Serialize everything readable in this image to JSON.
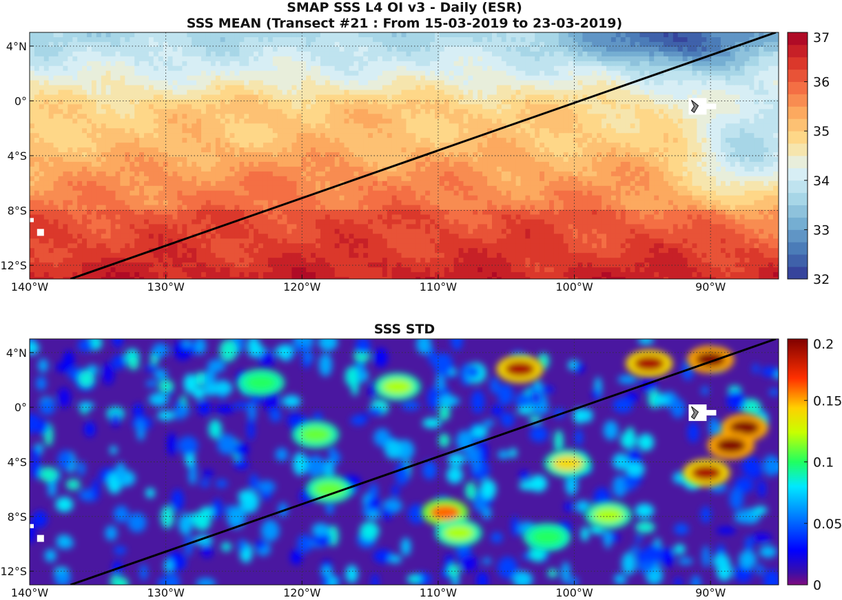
{
  "figure": {
    "title_line1": "SMAP SSS L4 OI v3 - Daily (ESR)",
    "title_line2": "SSS MEAN (Transect #21 : From 15-03-2019 to 23-03-2019)"
  },
  "chart_data": [
    {
      "type": "heatmap",
      "title": "SSS MEAN",
      "x_ticks": [
        {
          "value": -140,
          "label": "140°W"
        },
        {
          "value": -130,
          "label": "130°W"
        },
        {
          "value": -120,
          "label": "120°W"
        },
        {
          "value": -110,
          "label": "110°W"
        },
        {
          "value": -100,
          "label": "100°W"
        },
        {
          "value": -90,
          "label": "90°W"
        }
      ],
      "y_ticks": [
        {
          "value": 4,
          "label": "4°N"
        },
        {
          "value": 0,
          "label": "0°"
        },
        {
          "value": -4,
          "label": "4°S"
        },
        {
          "value": -8,
          "label": "8°S"
        },
        {
          "value": -12,
          "label": "12°S"
        }
      ],
      "xlim": [
        -140,
        -85
      ],
      "ylim": [
        -13,
        5
      ],
      "grid": true,
      "colorbar": {
        "min": 32,
        "max": 37,
        "ticks": [
          "32",
          "33",
          "34",
          "35",
          "36",
          "37"
        ],
        "colormap": "red-yellow-blue (diverging), reversed",
        "levels": 20
      },
      "transect": {
        "start": {
          "lon": -137,
          "lat": -13
        },
        "end": {
          "lon": -85.2,
          "lat": 5
        },
        "color": "#000000"
      },
      "fields": {
        "description_regions": [
          {
            "region": "north-east (95W-88W, 2N-5N)",
            "value": 33.0
          },
          {
            "region": "northern band (135W-95W, 1N-5N)",
            "value": 34.2
          },
          {
            "region": "equatorial band (140W-100W, 0-2S)",
            "value": 35.0
          },
          {
            "region": "south-west (140W-110W, 4S-8S)",
            "value": 35.5
          },
          {
            "region": "south (140W-100W, 8S-13S)",
            "value": 36.0
          },
          {
            "region": "east (95W-85W, 2S-8S)",
            "value": 34.2
          }
        ]
      }
    },
    {
      "type": "heatmap",
      "title": "SSS STD",
      "x_ticks": [
        {
          "value": -140,
          "label": "140°W"
        },
        {
          "value": -130,
          "label": "130°W"
        },
        {
          "value": -120,
          "label": "120°W"
        },
        {
          "value": -110,
          "label": "110°W"
        },
        {
          "value": -100,
          "label": "100°W"
        },
        {
          "value": -90,
          "label": "90°W"
        }
      ],
      "y_ticks": [
        {
          "value": 4,
          "label": "4°N"
        },
        {
          "value": 0,
          "label": "0°"
        },
        {
          "value": -4,
          "label": "4°S"
        },
        {
          "value": -8,
          "label": "8°S"
        },
        {
          "value": -12,
          "label": "12°S"
        }
      ],
      "xlim": [
        -140,
        -85
      ],
      "ylim": [
        -13,
        5
      ],
      "grid": true,
      "colorbar": {
        "min": 0,
        "max": 0.2,
        "ticks": [
          "0",
          "0.05",
          "0.1",
          "0.15",
          "0.2"
        ],
        "colormap": "jet"
      },
      "transect": {
        "start": {
          "lon": -137,
          "lat": -13
        },
        "end": {
          "lon": -85.2,
          "lat": 5
        },
        "color": "#000000"
      },
      "hotspots": [
        {
          "lon": -104,
          "lat": 2.8,
          "value": 0.19
        },
        {
          "lon": -94.5,
          "lat": 3.2,
          "value": 0.19
        },
        {
          "lon": -90,
          "lat": 3.5,
          "value": 0.2
        },
        {
          "lon": -87.5,
          "lat": -1.5,
          "value": 0.2
        },
        {
          "lon": -88.5,
          "lat": -2.8,
          "value": 0.2
        },
        {
          "lon": -90.3,
          "lat": -4.8,
          "value": 0.19
        },
        {
          "lon": -109.5,
          "lat": -7.7,
          "value": 0.16
        },
        {
          "lon": -100.5,
          "lat": -4.1,
          "value": 0.14
        },
        {
          "lon": -118,
          "lat": -6,
          "value": 0.11
        },
        {
          "lon": -108.5,
          "lat": -9.2,
          "value": 0.12
        },
        {
          "lon": -97.5,
          "lat": -7.9,
          "value": 0.12
        },
        {
          "lon": -113,
          "lat": 1.5,
          "value": 0.12
        },
        {
          "lon": -123,
          "lat": 1.8,
          "value": 0.1
        },
        {
          "lon": -119,
          "lat": -2.0,
          "value": 0.11
        },
        {
          "lon": -102,
          "lat": -9.5,
          "value": 0.1
        }
      ]
    }
  ]
}
